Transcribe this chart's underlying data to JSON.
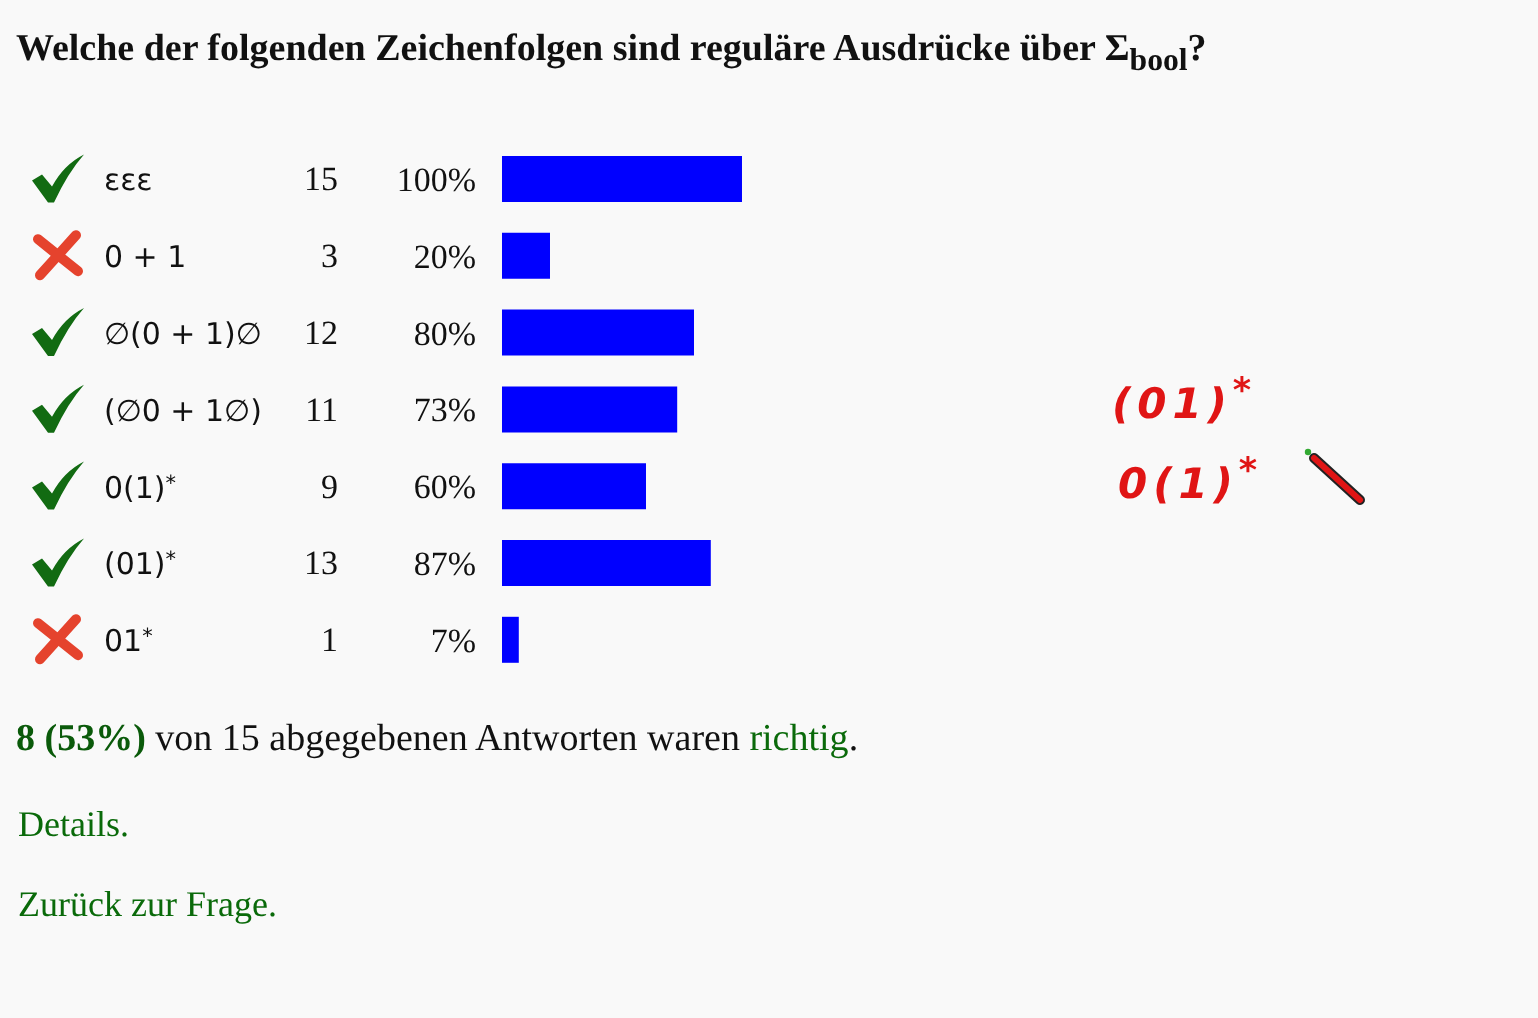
{
  "chart_data": {
    "type": "bar",
    "orientation": "horizontal",
    "title": "Welche der folgenden Zeichenfolgen sind reguläre Ausdrücke über Σ$_{bool}$?",
    "categories": [
      "εεε",
      "0 + 1",
      "∅(0 + 1)∅",
      "(∅0 + 1∅)",
      "0(1)$^{*}$",
      "(01)$^{*}$",
      "01$^{*}$"
    ],
    "values": [
      100,
      20,
      80,
      73,
      60,
      87,
      7
    ],
    "color": "#0000ff",
    "value_labels": [
      "100%",
      "20%",
      "80%",
      "73%",
      "60%",
      "87%",
      "7%"
    ],
    "annotations": [
      "15",
      "3",
      "12",
      "11",
      "9",
      "13",
      "1",
      "(01)$^{*}$",
      "0(1)$^{*}$",
      "8 (53%) von 15 abgegebenen Antworten waren richtig.",
      "Details.",
      "Zurück zur Frage."
    ]
  }
}
